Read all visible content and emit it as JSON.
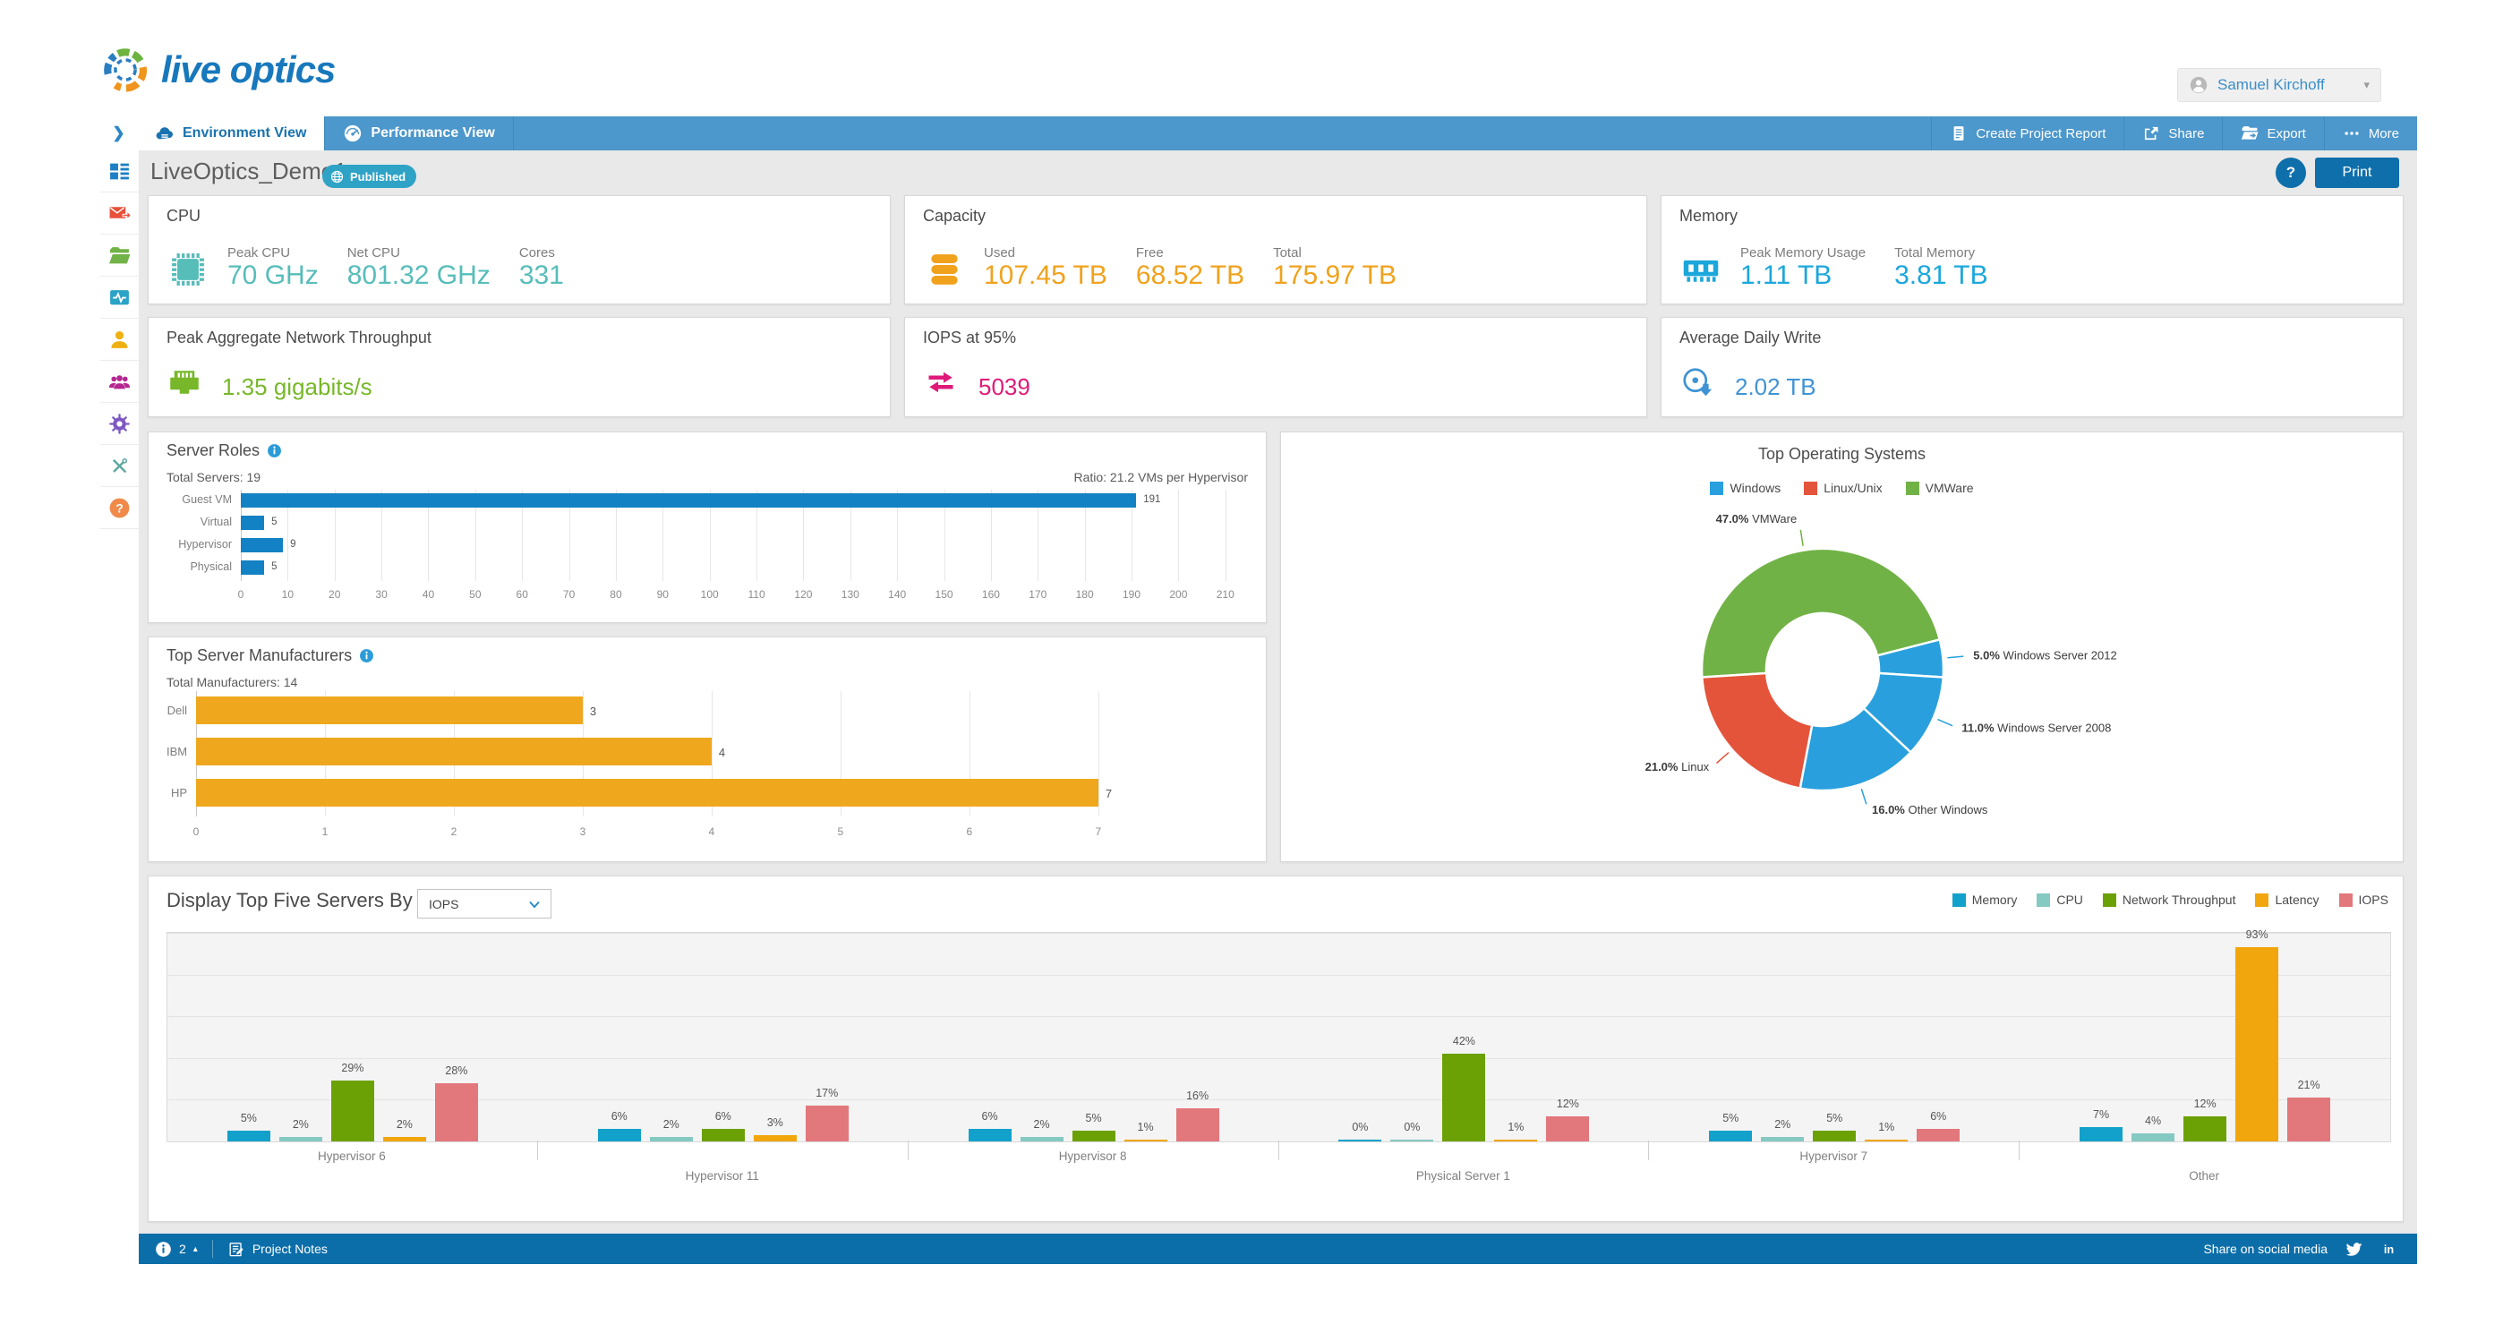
{
  "header": {
    "logo_text": "live optics",
    "user_name": "Samuel Kirchoff"
  },
  "nav": {
    "tabs": [
      {
        "label": "Environment View",
        "icon": "cloud-icon",
        "active": true
      },
      {
        "label": "Performance View",
        "icon": "gauge-icon",
        "active": false
      }
    ],
    "actions": [
      {
        "label": "Create Project Report",
        "icon": "report-icon"
      },
      {
        "label": "Share",
        "icon": "share-icon"
      },
      {
        "label": "Export",
        "icon": "export-icon"
      },
      {
        "label": "More",
        "icon": "more-dots-icon"
      }
    ]
  },
  "sidebar": {
    "items": [
      {
        "name": "dashboard",
        "color": "#1d7fc4"
      },
      {
        "name": "mail",
        "color": "#e8503a"
      },
      {
        "name": "folder",
        "color": "#72b348"
      },
      {
        "name": "activity",
        "color": "#2ba3c7"
      },
      {
        "name": "user",
        "color": "#eeb111"
      },
      {
        "name": "users",
        "color": "#b5258f"
      },
      {
        "name": "gear",
        "color": "#7e57c2"
      },
      {
        "name": "tools",
        "color": "#5fa8a0"
      },
      {
        "name": "help",
        "color": "#f08a4b"
      }
    ]
  },
  "page": {
    "title": "LiveOptics_Demo1",
    "badge": "Published",
    "help": "?",
    "print": "Print"
  },
  "metric_cards": [
    {
      "id": "cpu",
      "title": "CPU",
      "icon": "chip-icon",
      "color": "#57bdb9",
      "metrics": [
        {
          "label": "Peak CPU",
          "value": "70 GHz"
        },
        {
          "label": "Net CPU",
          "value": "801.32 GHz"
        },
        {
          "label": "Cores",
          "value": "331"
        }
      ]
    },
    {
      "id": "capacity",
      "title": "Capacity",
      "icon": "database-icon",
      "color": "#f0a21d",
      "metrics": [
        {
          "label": "Used",
          "value": "107.45 TB"
        },
        {
          "label": "Free",
          "value": "68.52 TB"
        },
        {
          "label": "Total",
          "value": "175.97 TB"
        }
      ]
    },
    {
      "id": "memory",
      "title": "Memory",
      "icon": "ram-icon",
      "color": "#1ba7db",
      "metrics": [
        {
          "label": "Peak Memory Usage",
          "value": "1.11 TB"
        },
        {
          "label": "Total Memory",
          "value": "3.81 TB"
        }
      ]
    },
    {
      "id": "network",
      "title": "Peak Aggregate Network Throughput",
      "icon": "ethernet-icon",
      "color": "#77b729",
      "metrics": [
        {
          "label": "",
          "value": "1.35 gigabits/s"
        }
      ]
    },
    {
      "id": "iops",
      "title": "IOPS at 95%",
      "icon": "sync-arrows-icon",
      "color": "#df1a7b",
      "metrics": [
        {
          "label": "",
          "value": "5039"
        }
      ]
    },
    {
      "id": "write",
      "title": "Average Daily Write",
      "icon": "disc-write-icon",
      "color": "#3f93d4",
      "metrics": [
        {
          "label": "",
          "value": "2.02 TB"
        }
      ]
    }
  ],
  "chart_data": [
    {
      "id": "server_roles",
      "type": "bar",
      "orientation": "horizontal",
      "title": "Server Roles",
      "subtitle": "Total Servers: 19",
      "annotation": "Ratio: 21.2 VMs per Hypervisor",
      "categories": [
        "Guest VM",
        "Virtual",
        "Hypervisor",
        "Physical"
      ],
      "values": [
        191,
        5,
        9,
        5
      ],
      "bar_color": "#1282c4",
      "xlim": [
        0,
        211
      ],
      "xtick_step": 10,
      "grid": true
    },
    {
      "id": "manufacturers",
      "type": "bar",
      "orientation": "horizontal",
      "title": "Top Server Manufacturers",
      "subtitle": "Total Manufacturers: 14",
      "categories": [
        "Dell",
        "IBM",
        "HP"
      ],
      "values": [
        3,
        4,
        7
      ],
      "bar_color": "#efa81d",
      "xlim": [
        0,
        7.55
      ],
      "xtick_step": 1,
      "grid": true
    },
    {
      "id": "top_os",
      "type": "pie",
      "donut": true,
      "title": "Top Operating Systems",
      "legend": [
        {
          "label": "Windows",
          "color": "#29a0dd"
        },
        {
          "label": "Linux/Unix",
          "color": "#e4543b"
        },
        {
          "label": "VMWare",
          "color": "#71b246"
        }
      ],
      "legend_position": "top",
      "start_angle": 266.4,
      "slices": [
        {
          "label": "VMWare",
          "pct": 47.0,
          "color": "#71b246"
        },
        {
          "label": "Windows Server 2012",
          "pct": 5.0,
          "color": "#29a0dd"
        },
        {
          "label": "Windows Server 2008",
          "pct": 11.0,
          "color": "#29a0dd"
        },
        {
          "label": "Other Windows",
          "pct": 16.0,
          "color": "#29a0dd"
        },
        {
          "label": "Linux",
          "pct": 21.0,
          "color": "#e4543b"
        }
      ]
    },
    {
      "id": "top_five",
      "type": "bar",
      "orientation": "vertical",
      "grouped": true,
      "title": "Display Top Five Servers By",
      "dropdown_value": "IOPS",
      "categories": [
        "Hypervisor 6",
        "Hypervisor 11",
        "Hypervisor 8",
        "Physical Server 1",
        "Hypervisor 7",
        "Other"
      ],
      "series": [
        {
          "name": "Memory",
          "color": "#12a1ca",
          "values": [
            5,
            6,
            6,
            0,
            5,
            7
          ]
        },
        {
          "name": "CPU",
          "color": "#85c9c3",
          "values": [
            2,
            2,
            2,
            0,
            2,
            4
          ]
        },
        {
          "name": "Network Throughput",
          "color": "#6ba104",
          "values": [
            29,
            6,
            5,
            42,
            5,
            12
          ]
        },
        {
          "name": "Latency",
          "color": "#f2a60d",
          "values": [
            2,
            3,
            1,
            1,
            1,
            93
          ]
        },
        {
          "name": "IOPS",
          "color": "#e2777c",
          "values": [
            28,
            17,
            16,
            12,
            6,
            21
          ]
        }
      ],
      "ylim": [
        0,
        100
      ],
      "ytick_step": 20,
      "value_suffix": "%",
      "grid": true,
      "legend_position": "top-right"
    }
  ],
  "footer": {
    "count": "2",
    "notes_label": "Project Notes",
    "share_label": "Share on social media"
  }
}
